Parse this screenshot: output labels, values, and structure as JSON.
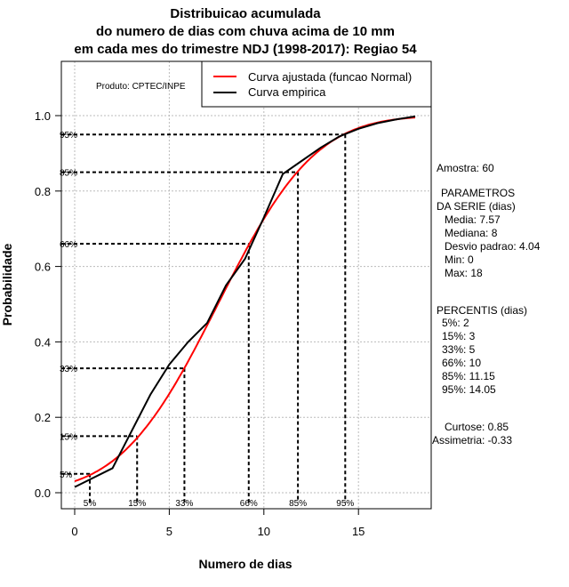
{
  "chart_data": {
    "type": "line",
    "title": [
      "Distribuicao acumulada",
      "do numero de dias com chuva acima de 10 mm",
      "em cada mes do trimestre NDJ (1998-2017): Regiao 54"
    ],
    "xlabel": "Numero de dias",
    "ylabel": "Probabilidade",
    "xlim": [
      -0.8,
      18.8
    ],
    "ylim": [
      -0.05,
      1.1
    ],
    "xticks": [
      0,
      5,
      10,
      15
    ],
    "xtick_labels": [
      "0",
      "5",
      "10",
      "15"
    ],
    "yticks": [
      0.0,
      0.2,
      0.4,
      0.6,
      0.8,
      1.0
    ],
    "ytick_labels": [
      "0.0",
      "0.2",
      "0.4",
      "0.6",
      "0.8",
      "1.0"
    ],
    "grid": true,
    "legend_position": "top-right",
    "series": [
      {
        "name": "Curva ajustada (funcao Normal)",
        "color": "#ff0000",
        "distribution": "normal",
        "mean": 7.57,
        "sd": 4.04,
        "x_range": [
          0,
          18
        ]
      },
      {
        "name": "Curva empirica",
        "color": "#000000",
        "x": [
          0,
          2,
          4,
          5,
          6,
          7,
          8,
          9,
          10,
          11,
          12,
          13,
          14,
          15,
          16,
          17,
          18
        ],
        "y": [
          0.015,
          0.065,
          0.26,
          0.34,
          0.4,
          0.45,
          0.55,
          0.62,
          0.73,
          0.845,
          0.88,
          0.915,
          0.945,
          0.965,
          0.98,
          0.99,
          0.998
        ]
      }
    ],
    "percentile_lines": [
      {
        "label": "5%",
        "prob": 0.05,
        "x": 0.8
      },
      {
        "label": "15%",
        "prob": 0.15,
        "x": 3.3
      },
      {
        "label": "33%",
        "prob": 0.33,
        "x": 5.8
      },
      {
        "label": "66%",
        "prob": 0.66,
        "x": 9.2
      },
      {
        "label": "85%",
        "prob": 0.85,
        "x": 11.8
      },
      {
        "label": "95%",
        "prob": 0.95,
        "x": 14.3
      }
    ],
    "annotations": {
      "produto": "Produto: CPTEC/INPE",
      "stats": [
        "Amostra: 60",
        "PARAMETROS",
        "DA SERIE (dias)",
        "Media: 7.57",
        "Mediana: 8",
        "Desvio padrao: 4.04",
        "Min: 0",
        "Max: 18",
        "PERCENTIS (dias)",
        "5%: 2",
        "15%: 3",
        "33%: 5",
        "66%: 10",
        "85%: 11.15",
        "95%: 14.05",
        "Curtose: 0.85",
        "Assimetria: -0.33"
      ]
    }
  }
}
